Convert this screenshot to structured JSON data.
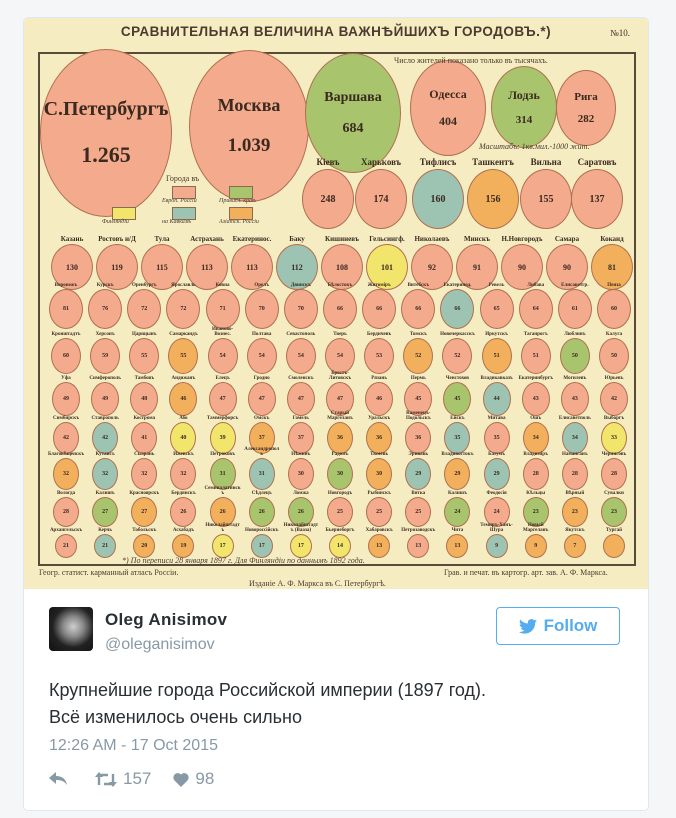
{
  "map": {
    "title": "СРАВНИТЕЛЬНАЯ ВЕЛИЧИНА ВАЖНѢЙШИХЪ ГОРОДОВЪ.*)",
    "number": "№10.",
    "note_top": "Число жителей показано только въ тысячахъ.",
    "scale": "Масштабъ: 1кв.мил.-1000 жит.",
    "legend_title": "Города въ",
    "legend": [
      {
        "label": "Европ. Россіи",
        "color": "#f4aa8c"
      },
      {
        "label": "Привисл. краѣ",
        "color": "#a8c46c"
      },
      {
        "label": "Финляндіи",
        "color": "#f1e56c"
      },
      {
        "label": "на Кавказѣ",
        "color": "#9dc4b2"
      },
      {
        "label": "Азіатск. Россіи",
        "color": "#f2b05c"
      }
    ],
    "footnote": "*) По переписи 28 января 1897 г. Для Финляндіи по даннымъ 1892 года.",
    "footer_left": "Геогр. статист. карманный атласъ Россіи.",
    "footer_right": "Грав. и печат. въ картогр. арт. зав. А. Ф. Маркса.",
    "footer_center": "Изданіе А. Ф. Маркса въ С. Петербургѣ.",
    "colors": {
      "p": "#f4aa8c",
      "g": "#a8c46c",
      "t": "#9dc4b2",
      "y": "#f1e56c",
      "o": "#f2b05c"
    },
    "big": [
      {
        "name": "С.Петербургъ",
        "value": "1.265",
        "c": "p"
      },
      {
        "name": "Москва",
        "value": "1.039",
        "c": "p"
      },
      {
        "name": "Варшава",
        "value": "684",
        "c": "g"
      },
      {
        "name": "Одесса",
        "value": "404",
        "c": "p"
      },
      {
        "name": "Лодзь",
        "value": "314",
        "c": "g"
      },
      {
        "name": "Рига",
        "value": "282",
        "c": "p"
      }
    ],
    "second": [
      {
        "name": "Кіевъ",
        "value": "248",
        "c": "p"
      },
      {
        "name": "Харьковъ",
        "value": "174",
        "c": "p"
      },
      {
        "name": "Тифлисъ",
        "value": "160",
        "c": "t"
      },
      {
        "name": "Ташкентъ",
        "value": "156",
        "c": "o"
      },
      {
        "name": "Вильна",
        "value": "155",
        "c": "p"
      },
      {
        "name": "Саратовъ",
        "value": "137",
        "c": "p"
      }
    ],
    "rows": [
      [
        [
          "Казань",
          "130",
          "p"
        ],
        [
          "Ростовъ н/Д",
          "119",
          "p"
        ],
        [
          "Тула",
          "115",
          "p"
        ],
        [
          "Астрахань",
          "113",
          "p"
        ],
        [
          "Екатеринос.",
          "113",
          "p"
        ],
        [
          "Баку",
          "112",
          "t"
        ],
        [
          "Кишиневъ",
          "108",
          "p"
        ],
        [
          "Гельсингф.",
          "101",
          "y"
        ],
        [
          "Николаевъ",
          "92",
          "p"
        ],
        [
          "Минскъ",
          "91",
          "p"
        ],
        [
          "Н.Новгородъ",
          "90",
          "p"
        ],
        [
          "Самара",
          "90",
          "p"
        ],
        [
          "Коканд",
          "81",
          "o"
        ]
      ],
      [
        [
          "Воронежъ",
          "81",
          "p"
        ],
        [
          "Курскъ",
          "76",
          "p"
        ],
        [
          "Оренбургъ",
          "72",
          "p"
        ],
        [
          "Ярославль",
          "72",
          "p"
        ],
        [
          "Ковна",
          "71",
          "p"
        ],
        [
          "Орелъ",
          "70",
          "p"
        ],
        [
          "Двинскъ",
          "70",
          "p"
        ],
        [
          "Бѣлостокъ",
          "66",
          "p"
        ],
        [
          "Житоміръ",
          "66",
          "p"
        ],
        [
          "Витебскъ",
          "66",
          "p"
        ],
        [
          "Екатеринод.",
          "66",
          "t"
        ],
        [
          "Ревель",
          "65",
          "p"
        ],
        [
          "Либава",
          "64",
          "p"
        ],
        [
          "Елисаветгр.",
          "61",
          "p"
        ],
        [
          "Пенза",
          "60",
          "p"
        ]
      ],
      [
        [
          "Кронштадтъ",
          "60",
          "p"
        ],
        [
          "Херсонъ",
          "59",
          "p"
        ],
        [
          "Царицынъ",
          "55",
          "p"
        ],
        [
          "Самаркандъ",
          "55",
          "o"
        ],
        [
          "Иваново-Вознес.",
          "54",
          "p"
        ],
        [
          "Полтава",
          "54",
          "p"
        ],
        [
          "Севастополь",
          "54",
          "p"
        ],
        [
          "Тверь",
          "54",
          "p"
        ],
        [
          "Бердичевъ",
          "53",
          "p"
        ],
        [
          "Томскъ",
          "52",
          "o"
        ],
        [
          "Новочеркасскъ",
          "52",
          "p"
        ],
        [
          "Иркутскъ",
          "51",
          "o"
        ],
        [
          "Таганрогъ",
          "51",
          "p"
        ],
        [
          "Люблинъ",
          "50",
          "g"
        ],
        [
          "Калуга",
          "50",
          "p"
        ]
      ],
      [
        [
          "Уфа",
          "49",
          "p"
        ],
        [
          "Симферополь",
          "49",
          "p"
        ],
        [
          "Тамбовъ",
          "48",
          "p"
        ],
        [
          "Андижанъ",
          "46",
          "o"
        ],
        [
          "Елецъ",
          "47",
          "p"
        ],
        [
          "Гродно",
          "47",
          "p"
        ],
        [
          "Смоленскъ",
          "47",
          "p"
        ],
        [
          "Брестъ-Литовскъ",
          "47",
          "p"
        ],
        [
          "Рязань",
          "46",
          "p"
        ],
        [
          "Пермь",
          "45",
          "p"
        ],
        [
          "Ченстохов",
          "45",
          "g"
        ],
        [
          "Владикавказъ",
          "44",
          "t"
        ],
        [
          "Екатеринбургъ",
          "43",
          "p"
        ],
        [
          "Могилевъ",
          "43",
          "p"
        ],
        [
          "Юрьевъ",
          "42",
          "p"
        ]
      ],
      [
        [
          "Симбирскъ",
          "42",
          "p"
        ],
        [
          "Ставрополь",
          "42",
          "t"
        ],
        [
          "Кострома",
          "41",
          "p"
        ],
        [
          "Або",
          "40",
          "y"
        ],
        [
          "Таммерфорсъ",
          "39",
          "y"
        ],
        [
          "Омскъ",
          "37",
          "o"
        ],
        [
          "Гомель",
          "37",
          "p"
        ],
        [
          "Старый Маргеланъ",
          "36",
          "o"
        ],
        [
          "Уральскъ",
          "36",
          "o"
        ],
        [
          "Каменецъ-Подольскъ",
          "36",
          "p"
        ],
        [
          "Ейскъ",
          "35",
          "t"
        ],
        [
          "Митава",
          "35",
          "p"
        ],
        [
          "Ошъ",
          "34",
          "o"
        ],
        [
          "Елисаветполь",
          "34",
          "t"
        ],
        [
          "Выборгъ",
          "33",
          "y"
        ]
      ],
      [
        [
          "Благовѣщенскъ",
          "32",
          "o"
        ],
        [
          "Кутаисъ",
          "32",
          "t"
        ],
        [
          "Сызрань",
          "32",
          "p"
        ],
        [
          "Ижевскъ",
          "32",
          "p"
        ],
        [
          "Петроковъ",
          "31",
          "g"
        ],
        [
          "Александрополь",
          "31",
          "t"
        ],
        [
          "Нѣжинъ",
          "30",
          "p"
        ],
        [
          "Радомъ",
          "30",
          "g"
        ],
        [
          "Тюмень",
          "30",
          "o"
        ],
        [
          "Эривань",
          "29",
          "t"
        ],
        [
          "Владивостокъ",
          "29",
          "o"
        ],
        [
          "Батумъ",
          "29",
          "t"
        ],
        [
          "Владиміръ",
          "28",
          "p"
        ],
        [
          "Наманганъ",
          "28",
          "p"
        ],
        [
          "Черниговъ",
          "28",
          "p"
        ]
      ],
      [
        [
          "Вологда",
          "28",
          "p"
        ],
        [
          "Калишъ",
          "27",
          "g"
        ],
        [
          "Красноярскъ",
          "27",
          "o"
        ],
        [
          "Бердянскъ",
          "26",
          "p"
        ],
        [
          "Семипалатинскъ",
          "26",
          "o"
        ],
        [
          "Сѣдлецъ",
          "26",
          "g"
        ],
        [
          "Ломжа",
          "26",
          "g"
        ],
        [
          "Новгородъ",
          "25",
          "p"
        ],
        [
          "Рыбинскъ",
          "25",
          "p"
        ],
        [
          "Вятка",
          "25",
          "p"
        ],
        [
          "Калишъ",
          "24",
          "g"
        ],
        [
          "Феодосія",
          "24",
          "p"
        ],
        [
          "Кѣльцы",
          "23",
          "g"
        ],
        [
          "Вѣрный",
          "23",
          "o"
        ],
        [
          "Сувалки",
          "23",
          "g"
        ]
      ],
      [
        [
          "Архангельскъ",
          "21",
          "p"
        ],
        [
          "Керчь",
          "21",
          "t"
        ],
        [
          "Тобольскъ",
          "20",
          "o"
        ],
        [
          "Асхабадъ",
          "19",
          "o"
        ],
        [
          "Николайштадтъ",
          "17",
          "y"
        ],
        [
          "Новороссійскъ",
          "17",
          "t"
        ],
        [
          "Николайштадтъ (Вааза)",
          "17",
          "y"
        ],
        [
          "Бьернеборгъ",
          "14",
          "y"
        ],
        [
          "Хабаровскъ",
          "13",
          "o"
        ],
        [
          "Петрозаводскъ",
          "13",
          "p"
        ],
        [
          "Чита",
          "13",
          "o"
        ],
        [
          "Темиръ-Ханъ-Шура",
          "9",
          "t"
        ],
        [
          "Новый Маргеланъ",
          "9",
          "o"
        ],
        [
          "Якутскъ",
          "7",
          "o"
        ],
        [
          "Тургай",
          "",
          "o"
        ]
      ]
    ]
  },
  "tweet": {
    "name": "Oleg Anisimov",
    "handle": "@oleganisimov",
    "follow_label": "Follow",
    "text_line1": "Крупнейшие города Российской империи (1897 год).",
    "text_line2": "Всё изменилось очень сильно",
    "timestamp": "12:26 AM - 17 Oct 2015",
    "retweets": "157",
    "likes": "98",
    "accent": "#55acee"
  }
}
